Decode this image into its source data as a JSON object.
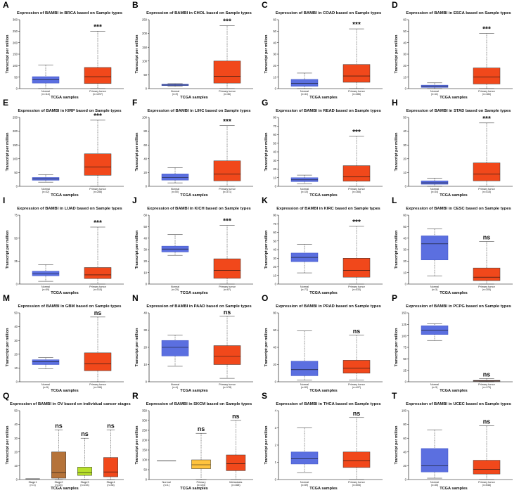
{
  "figure": {
    "xlabel": "TCGA samples",
    "ylabel": "Transcript per million"
  },
  "colors": {
    "normal": "#5b6fe0",
    "normal_edge": "#3a4fc4",
    "tumor": "#f1481b",
    "tumor_edge": "#c7310a",
    "stage2": "#b5733a",
    "stage3": "#b8e02a",
    "stage4": "#f1481b",
    "primary_skcm": "#ffc33d",
    "metastasis": "#f1481b"
  },
  "chart_data": [
    {
      "letter": "A",
      "type": "box",
      "title": "Expression of BAMBI in BRCA based on Sample types",
      "ylim": [
        0,
        300
      ],
      "ticks": [
        0,
        50,
        100,
        150,
        200,
        250,
        300
      ],
      "groups": [
        {
          "name": "Normal",
          "n": "(n=114)",
          "min": 0,
          "q1": 24,
          "median": 38,
          "q3": 52,
          "max": 103,
          "color": "normal"
        },
        {
          "name": "Primary tumor",
          "n": "(n=1097)",
          "min": 0,
          "q1": 22,
          "median": 52,
          "q3": 92,
          "max": 250,
          "color": "tumor"
        }
      ],
      "annotation": "***"
    },
    {
      "letter": "B",
      "type": "box",
      "title": "Expression of BAMBI in CHOL based on Sample types",
      "ylim": [
        0,
        250
      ],
      "ticks": [
        0,
        50,
        100,
        150,
        200,
        250
      ],
      "groups": [
        {
          "name": "Normal",
          "n": "(n=9)",
          "min": 8,
          "q1": 11,
          "median": 13,
          "q3": 16,
          "max": 18,
          "color": "normal"
        },
        {
          "name": "Primary tumor",
          "n": "(n=36)",
          "min": 0,
          "q1": 20,
          "median": 45,
          "q3": 100,
          "max": 228,
          "color": "tumor"
        }
      ],
      "annotation": "***"
    },
    {
      "letter": "C",
      "type": "box",
      "title": "Expression of BAMBI in COAD based on Sample types",
      "ylim": [
        0,
        60
      ],
      "ticks": [
        0,
        10,
        20,
        30,
        40,
        50,
        60
      ],
      "groups": [
        {
          "name": "Normal",
          "n": "(n=41)",
          "min": 0,
          "q1": 2,
          "median": 4.5,
          "q3": 8,
          "max": 13.5,
          "color": "normal"
        },
        {
          "name": "Primary tumor",
          "n": "(n=286)",
          "min": 0,
          "q1": 5.5,
          "median": 11,
          "q3": 21,
          "max": 52,
          "color": "tumor"
        }
      ],
      "annotation": "***"
    },
    {
      "letter": "D",
      "type": "box",
      "title": "Expression of BAMBI in ESCA based on Sample types",
      "ylim": [
        0,
        60
      ],
      "ticks": [
        0,
        10,
        20,
        30,
        40,
        50,
        60
      ],
      "groups": [
        {
          "name": "Normal",
          "n": "(n=11)",
          "min": 0,
          "q1": 1,
          "median": 2,
          "q3": 3,
          "max": 5,
          "color": "normal"
        },
        {
          "name": "Primary tumor",
          "n": "(n=184)",
          "min": 0,
          "q1": 4,
          "median": 10,
          "q3": 18,
          "max": 48,
          "color": "tumor"
        }
      ],
      "annotation": "***"
    },
    {
      "letter": "E",
      "type": "box",
      "title": "Expression of BAMBI in KIRP based on Sample types",
      "ylim": [
        0,
        250
      ],
      "ticks": [
        0,
        50,
        100,
        150,
        200,
        250
      ],
      "groups": [
        {
          "name": "Normal",
          "n": "(n=32)",
          "min": 15,
          "q1": 22,
          "median": 27,
          "q3": 32,
          "max": 42,
          "color": "normal"
        },
        {
          "name": "Primary tumor",
          "n": "(n=288)",
          "min": 0,
          "q1": 40,
          "median": 70,
          "q3": 118,
          "max": 240,
          "color": "tumor"
        }
      ],
      "annotation": "***"
    },
    {
      "letter": "F",
      "type": "box",
      "title": "Expression of BAMBI in LIHC based on Sample types",
      "ylim": [
        0,
        100
      ],
      "ticks": [
        0,
        20,
        40,
        60,
        80,
        100
      ],
      "groups": [
        {
          "name": "Normal",
          "n": "(n=50)",
          "min": 5,
          "q1": 9,
          "median": 13,
          "q3": 18,
          "max": 27,
          "color": "normal"
        },
        {
          "name": "Primary tumor",
          "n": "(n=371)",
          "min": 0,
          "q1": 8,
          "median": 18,
          "q3": 37,
          "max": 88,
          "color": "tumor"
        }
      ],
      "annotation": "***"
    },
    {
      "letter": "G",
      "type": "box",
      "title": "Expression of BAMBI in READ based on Sample types",
      "ylim": [
        0,
        80
      ],
      "ticks": [
        0,
        10,
        20,
        30,
        40,
        50,
        60,
        70,
        80
      ],
      "groups": [
        {
          "name": "Normal",
          "n": "(n=10)",
          "min": 3,
          "q1": 5.5,
          "median": 7.5,
          "q3": 10,
          "max": 13,
          "color": "normal"
        },
        {
          "name": "Primary tumor",
          "n": "(n=166)",
          "min": 0,
          "q1": 6,
          "median": 11,
          "q3": 24,
          "max": 58,
          "color": "tumor"
        }
      ],
      "annotation": "***"
    },
    {
      "letter": "H",
      "type": "box",
      "title": "Expression of BAMBI in STAD based on Sample types",
      "ylim": [
        0,
        50
      ],
      "ticks": [
        0,
        10,
        20,
        30,
        40,
        50
      ],
      "groups": [
        {
          "name": "Normal",
          "n": "(n=34)",
          "min": 0,
          "q1": 1.5,
          "median": 2.5,
          "q3": 4,
          "max": 6,
          "color": "normal"
        },
        {
          "name": "Primary tumor",
          "n": "(n=415)",
          "min": 0,
          "q1": 4,
          "median": 9,
          "q3": 17,
          "max": 46,
          "color": "tumor"
        }
      ],
      "annotation": "***"
    },
    {
      "letter": "I",
      "type": "box",
      "title": "Expression of BAMBI in LUAD based on Sample types",
      "ylim": [
        0,
        75
      ],
      "ticks": [
        0,
        25,
        50,
        75
      ],
      "groups": [
        {
          "name": "Normal",
          "n": "(n=59)",
          "min": 3,
          "q1": 9,
          "median": 11,
          "q3": 14,
          "max": 21,
          "color": "normal"
        },
        {
          "name": "Primary tumor",
          "n": "(n=515)",
          "min": 0,
          "q1": 6,
          "median": 10,
          "q3": 18,
          "max": 62,
          "color": "tumor"
        }
      ],
      "annotation": "***"
    },
    {
      "letter": "J",
      "type": "box",
      "title": "Expression of BAMBI in KICH based on Sample types",
      "ylim": [
        0,
        60
      ],
      "ticks": [
        0,
        10,
        20,
        30,
        40,
        50,
        60
      ],
      "groups": [
        {
          "name": "Normal",
          "n": "(n=25)",
          "min": 25,
          "q1": 28,
          "median": 30.5,
          "q3": 33,
          "max": 43,
          "color": "normal"
        },
        {
          "name": "Primary tumor",
          "n": "(n=67)",
          "min": 0,
          "q1": 5,
          "median": 12,
          "q3": 22,
          "max": 51,
          "color": "tumor"
        }
      ],
      "annotation": "***"
    },
    {
      "letter": "K",
      "type": "box",
      "title": "Expression of BAMBI in KIRC based on Sample types",
      "ylim": [
        0,
        80
      ],
      "ticks": [
        0,
        10,
        20,
        30,
        40,
        50,
        60,
        70,
        80
      ],
      "groups": [
        {
          "name": "Normal",
          "n": "(n=72)",
          "min": 13,
          "q1": 26,
          "median": 31,
          "q3": 36,
          "max": 46,
          "color": "normal"
        },
        {
          "name": "Primary tumor",
          "n": "(n=533)",
          "min": 0,
          "q1": 8,
          "median": 16,
          "q3": 30,
          "max": 67,
          "color": "tumor"
        }
      ],
      "annotation": "***"
    },
    {
      "letter": "L",
      "type": "box",
      "title": "Expression of BAMBI in CESC based on Sample types",
      "ylim": [
        0,
        60
      ],
      "ticks": [
        0,
        10,
        20,
        30,
        40,
        50,
        60
      ],
      "groups": [
        {
          "name": "Normal",
          "n": "(n=3)",
          "min": 7,
          "q1": 21,
          "median": 35,
          "q3": 42,
          "max": 48,
          "color": "normal"
        },
        {
          "name": "Primary tumor",
          "n": "(n=305)",
          "min": 0,
          "q1": 3,
          "median": 6,
          "q3": 14,
          "max": 37,
          "color": "tumor"
        }
      ],
      "annotation": "ns"
    },
    {
      "letter": "M",
      "type": "box",
      "title": "Expression of BAMBI in GBM based on Sample types",
      "ylim": [
        0,
        50
      ],
      "ticks": [
        0,
        10,
        20,
        30,
        40,
        50
      ],
      "groups": [
        {
          "name": "Normal",
          "n": "(n=5)",
          "min": 9.5,
          "q1": 12.5,
          "median": 14.5,
          "q3": 16,
          "max": 17.5,
          "color": "normal"
        },
        {
          "name": "Primary tumor",
          "n": "(n=156)",
          "min": 0,
          "q1": 8,
          "median": 13,
          "q3": 21,
          "max": 47,
          "color": "tumor"
        }
      ],
      "annotation": "ns"
    },
    {
      "letter": "N",
      "type": "box",
      "title": "Expression of BAMBI in PAAD based on Sample types",
      "ylim": [
        0,
        40
      ],
      "ticks": [
        0,
        10,
        20,
        30,
        40
      ],
      "groups": [
        {
          "name": "Normal",
          "n": "(n=4)",
          "min": 9,
          "q1": 15,
          "median": 20,
          "q3": 24,
          "max": 27,
          "color": "normal"
        },
        {
          "name": "Primary tumor",
          "n": "(n=178)",
          "min": 2,
          "q1": 10,
          "median": 15,
          "q3": 21,
          "max": 38,
          "color": "tumor"
        }
      ],
      "annotation": "ns"
    },
    {
      "letter": "O",
      "type": "box",
      "title": "Expression of BAMBI in PRAD based on Sample types",
      "ylim": [
        0,
        80
      ],
      "ticks": [
        0,
        20,
        40,
        60,
        80
      ],
      "groups": [
        {
          "name": "Normal",
          "n": "(n=52)",
          "min": 2,
          "q1": 7,
          "median": 14,
          "q3": 24,
          "max": 59,
          "color": "normal"
        },
        {
          "name": "Primary tumor",
          "n": "(n=497)",
          "min": 2,
          "q1": 10,
          "median": 16,
          "q3": 25,
          "max": 54,
          "color": "tumor"
        }
      ],
      "annotation": "ns"
    },
    {
      "letter": "P",
      "type": "box",
      "title": "Expression of BAMBI in PCPG based on Sample types",
      "ylim": [
        0,
        150
      ],
      "ticks": [
        0,
        25,
        50,
        75,
        100,
        125,
        150
      ],
      "groups": [
        {
          "name": "Normal",
          "n": "(n=3)",
          "min": 90,
          "q1": 103,
          "median": 112,
          "q3": 122,
          "max": 126,
          "color": "normal"
        },
        {
          "name": "Primary tumor",
          "n": "(n=179)",
          "min": 0,
          "q1": 1,
          "median": 2,
          "q3": 3,
          "max": 7,
          "color": "tumor"
        }
      ],
      "annotation": "ns"
    },
    {
      "letter": "Q",
      "type": "box",
      "title": "Expression of BAMBI in OV based on individual cancer stages",
      "ylim": [
        0,
        50
      ],
      "ticks": [
        0,
        10,
        20,
        30,
        40,
        50
      ],
      "groups": [
        {
          "name": "Stage1",
          "n": "(n=1)",
          "min": 0.5,
          "q1": 0.5,
          "median": 0.5,
          "q3": 0.5,
          "max": 0.5,
          "color": "normal"
        },
        {
          "name": "Stage2",
          "n": "(n=23)",
          "min": 0,
          "q1": 1,
          "median": 5,
          "q3": 20,
          "max": 36,
          "color": "stage2"
        },
        {
          "name": "Stage3",
          "n": "(n=243)",
          "min": 0,
          "q1": 3,
          "median": 5,
          "q3": 9,
          "max": 30,
          "color": "stage3"
        },
        {
          "name": "Stage4",
          "n": "(n=36)",
          "min": 0,
          "q1": 2,
          "median": 5.5,
          "q3": 16,
          "max": 36,
          "color": "stage4"
        }
      ],
      "annotation": "ns",
      "annotation_groups": [
        1,
        2,
        3
      ]
    },
    {
      "letter": "R",
      "type": "box",
      "title": "Expression of BAMBI in SKCM based on Sample types",
      "ylim": [
        0,
        350
      ],
      "ticks": [
        0,
        50,
        100,
        150,
        200,
        250,
        300,
        350
      ],
      "groups": [
        {
          "name": "Normal",
          "n": "(n=1)",
          "min": 95,
          "q1": 95,
          "median": 95,
          "q3": 95,
          "max": 95,
          "color": "normal"
        },
        {
          "name": "Primary",
          "n": "(n=104)",
          "min": 0,
          "q1": 55,
          "median": 75,
          "q3": 100,
          "max": 235,
          "color": "primary_skcm"
        },
        {
          "name": "Metastasis",
          "n": "(n=368)",
          "min": 0,
          "q1": 45,
          "median": 80,
          "q3": 125,
          "max": 300,
          "color": "metastasis"
        }
      ],
      "annotation": "ns",
      "annotation_groups": [
        1,
        2
      ]
    },
    {
      "letter": "S",
      "type": "box",
      "title": "Expression of BAMBI in THCA based on Sample types",
      "ylim": [
        0,
        4
      ],
      "ticks": [
        0,
        1,
        2,
        3,
        4
      ],
      "groups": [
        {
          "name": "Normal",
          "n": "(n=59)",
          "min": 0.4,
          "q1": 0.9,
          "median": 1.2,
          "q3": 1.6,
          "max": 3,
          "color": "normal"
        },
        {
          "name": "Primary tumor",
          "n": "(n=505)",
          "min": 0,
          "q1": 0.7,
          "median": 1.1,
          "q3": 1.6,
          "max": 3.6,
          "color": "tumor"
        }
      ],
      "annotation": "ns"
    },
    {
      "letter": "T",
      "type": "box",
      "title": "Expression of BAMBI in UCEC based on Sample types",
      "ylim": [
        0,
        100
      ],
      "ticks": [
        0,
        20,
        40,
        60,
        80,
        100
      ],
      "groups": [
        {
          "name": "Normal",
          "n": "(n=35)",
          "min": 2,
          "q1": 11,
          "median": 20,
          "q3": 45,
          "max": 72,
          "color": "normal"
        },
        {
          "name": "Primary tumor",
          "n": "(n=546)",
          "min": 0,
          "q1": 8,
          "median": 15,
          "q3": 28,
          "max": 78,
          "color": "tumor"
        }
      ],
      "annotation": "ns"
    }
  ]
}
